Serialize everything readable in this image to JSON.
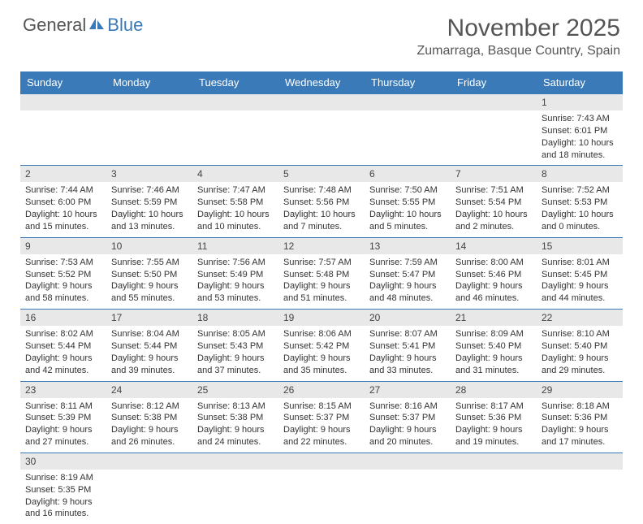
{
  "logo": {
    "text_a": "General",
    "text_b": "Blue"
  },
  "title": "November 2025",
  "subtitle": "Zumarraga, Basque Country, Spain",
  "day_headers": [
    "Sunday",
    "Monday",
    "Tuesday",
    "Wednesday",
    "Thursday",
    "Friday",
    "Saturday"
  ],
  "colors": {
    "header_bg": "#3b7ab8",
    "header_fg": "#ffffff",
    "date_bg": "#e8e8e8",
    "text": "#333333",
    "title_color": "#555555"
  },
  "weeks": [
    {
      "dates": [
        "",
        "",
        "",
        "",
        "",
        "",
        "1"
      ],
      "info": [
        "",
        "",
        "",
        "",
        "",
        "",
        "Sunrise: 7:43 AM\nSunset: 6:01 PM\nDaylight: 10 hours and 18 minutes."
      ]
    },
    {
      "dates": [
        "2",
        "3",
        "4",
        "5",
        "6",
        "7",
        "8"
      ],
      "info": [
        "Sunrise: 7:44 AM\nSunset: 6:00 PM\nDaylight: 10 hours and 15 minutes.",
        "Sunrise: 7:46 AM\nSunset: 5:59 PM\nDaylight: 10 hours and 13 minutes.",
        "Sunrise: 7:47 AM\nSunset: 5:58 PM\nDaylight: 10 hours and 10 minutes.",
        "Sunrise: 7:48 AM\nSunset: 5:56 PM\nDaylight: 10 hours and 7 minutes.",
        "Sunrise: 7:50 AM\nSunset: 5:55 PM\nDaylight: 10 hours and 5 minutes.",
        "Sunrise: 7:51 AM\nSunset: 5:54 PM\nDaylight: 10 hours and 2 minutes.",
        "Sunrise: 7:52 AM\nSunset: 5:53 PM\nDaylight: 10 hours and 0 minutes."
      ]
    },
    {
      "dates": [
        "9",
        "10",
        "11",
        "12",
        "13",
        "14",
        "15"
      ],
      "info": [
        "Sunrise: 7:53 AM\nSunset: 5:52 PM\nDaylight: 9 hours and 58 minutes.",
        "Sunrise: 7:55 AM\nSunset: 5:50 PM\nDaylight: 9 hours and 55 minutes.",
        "Sunrise: 7:56 AM\nSunset: 5:49 PM\nDaylight: 9 hours and 53 minutes.",
        "Sunrise: 7:57 AM\nSunset: 5:48 PM\nDaylight: 9 hours and 51 minutes.",
        "Sunrise: 7:59 AM\nSunset: 5:47 PM\nDaylight: 9 hours and 48 minutes.",
        "Sunrise: 8:00 AM\nSunset: 5:46 PM\nDaylight: 9 hours and 46 minutes.",
        "Sunrise: 8:01 AM\nSunset: 5:45 PM\nDaylight: 9 hours and 44 minutes."
      ]
    },
    {
      "dates": [
        "16",
        "17",
        "18",
        "19",
        "20",
        "21",
        "22"
      ],
      "info": [
        "Sunrise: 8:02 AM\nSunset: 5:44 PM\nDaylight: 9 hours and 42 minutes.",
        "Sunrise: 8:04 AM\nSunset: 5:44 PM\nDaylight: 9 hours and 39 minutes.",
        "Sunrise: 8:05 AM\nSunset: 5:43 PM\nDaylight: 9 hours and 37 minutes.",
        "Sunrise: 8:06 AM\nSunset: 5:42 PM\nDaylight: 9 hours and 35 minutes.",
        "Sunrise: 8:07 AM\nSunset: 5:41 PM\nDaylight: 9 hours and 33 minutes.",
        "Sunrise: 8:09 AM\nSunset: 5:40 PM\nDaylight: 9 hours and 31 minutes.",
        "Sunrise: 8:10 AM\nSunset: 5:40 PM\nDaylight: 9 hours and 29 minutes."
      ]
    },
    {
      "dates": [
        "23",
        "24",
        "25",
        "26",
        "27",
        "28",
        "29"
      ],
      "info": [
        "Sunrise: 8:11 AM\nSunset: 5:39 PM\nDaylight: 9 hours and 27 minutes.",
        "Sunrise: 8:12 AM\nSunset: 5:38 PM\nDaylight: 9 hours and 26 minutes.",
        "Sunrise: 8:13 AM\nSunset: 5:38 PM\nDaylight: 9 hours and 24 minutes.",
        "Sunrise: 8:15 AM\nSunset: 5:37 PM\nDaylight: 9 hours and 22 minutes.",
        "Sunrise: 8:16 AM\nSunset: 5:37 PM\nDaylight: 9 hours and 20 minutes.",
        "Sunrise: 8:17 AM\nSunset: 5:36 PM\nDaylight: 9 hours and 19 minutes.",
        "Sunrise: 8:18 AM\nSunset: 5:36 PM\nDaylight: 9 hours and 17 minutes."
      ]
    },
    {
      "dates": [
        "30",
        "",
        "",
        "",
        "",
        "",
        ""
      ],
      "info": [
        "Sunrise: 8:19 AM\nSunset: 5:35 PM\nDaylight: 9 hours and 16 minutes.",
        "",
        "",
        "",
        "",
        "",
        ""
      ]
    }
  ]
}
